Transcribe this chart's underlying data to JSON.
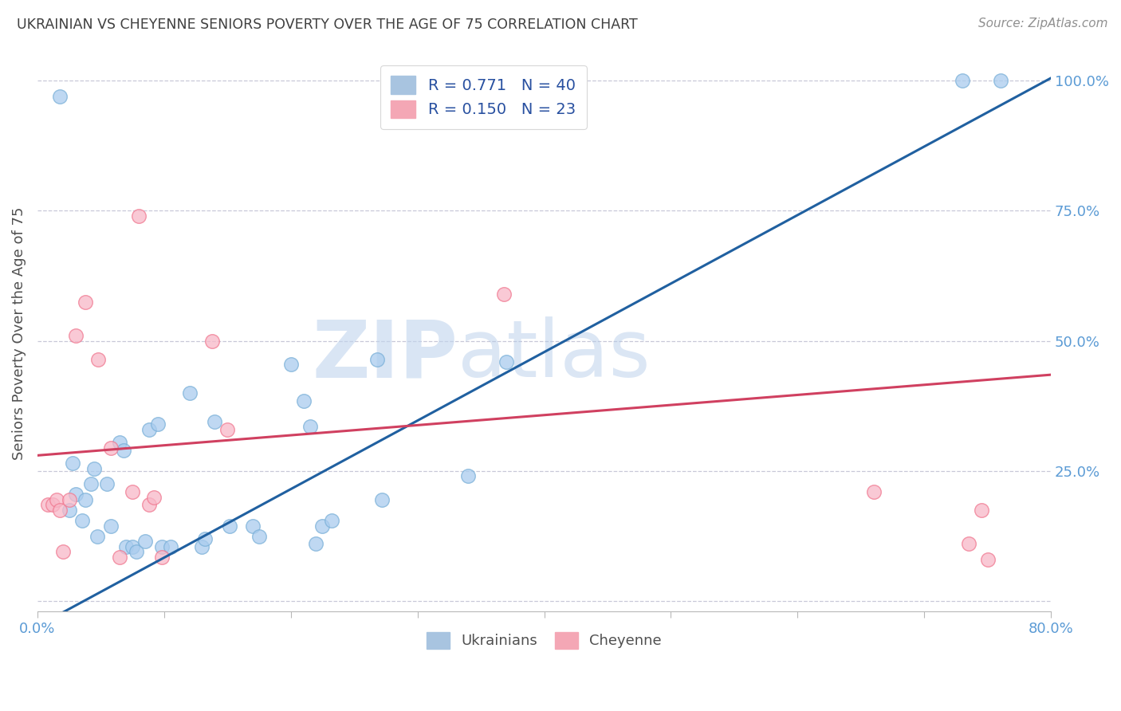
{
  "title": "UKRAINIAN VS CHEYENNE SENIORS POVERTY OVER THE AGE OF 75 CORRELATION CHART",
  "source": "Source: ZipAtlas.com",
  "ylabel": "Seniors Poverty Over the Age of 75",
  "xlim": [
    0.0,
    0.8
  ],
  "ylim": [
    -0.02,
    1.05
  ],
  "xticks": [
    0.0,
    0.1,
    0.2,
    0.3,
    0.4,
    0.5,
    0.6,
    0.7,
    0.8
  ],
  "xticklabels": [
    "0.0%",
    "",
    "",
    "",
    "",
    "",
    "",
    "",
    "80.0%"
  ],
  "yticks_right": [
    0.0,
    0.25,
    0.5,
    0.75,
    1.0
  ],
  "yticklabels_right": [
    "",
    "25.0%",
    "50.0%",
    "75.0%",
    "100.0%"
  ],
  "legend_entries": [
    {
      "label": "R = 0.771   N = 40",
      "color": "#a8c4e0"
    },
    {
      "label": "R = 0.150   N = 23",
      "color": "#f4a7b5"
    }
  ],
  "watermark_zip": "ZIP",
  "watermark_atlas": "atlas",
  "blue_scatter": [
    [
      0.018,
      0.97
    ],
    [
      0.025,
      0.175
    ],
    [
      0.028,
      0.265
    ],
    [
      0.03,
      0.205
    ],
    [
      0.035,
      0.155
    ],
    [
      0.038,
      0.195
    ],
    [
      0.042,
      0.225
    ],
    [
      0.045,
      0.255
    ],
    [
      0.047,
      0.125
    ],
    [
      0.055,
      0.225
    ],
    [
      0.058,
      0.145
    ],
    [
      0.065,
      0.305
    ],
    [
      0.068,
      0.29
    ],
    [
      0.07,
      0.105
    ],
    [
      0.075,
      0.105
    ],
    [
      0.078,
      0.095
    ],
    [
      0.085,
      0.115
    ],
    [
      0.088,
      0.33
    ],
    [
      0.095,
      0.34
    ],
    [
      0.098,
      0.105
    ],
    [
      0.105,
      0.105
    ],
    [
      0.12,
      0.4
    ],
    [
      0.13,
      0.105
    ],
    [
      0.132,
      0.12
    ],
    [
      0.14,
      0.345
    ],
    [
      0.152,
      0.145
    ],
    [
      0.17,
      0.145
    ],
    [
      0.175,
      0.125
    ],
    [
      0.2,
      0.455
    ],
    [
      0.21,
      0.385
    ],
    [
      0.215,
      0.335
    ],
    [
      0.22,
      0.11
    ],
    [
      0.225,
      0.145
    ],
    [
      0.232,
      0.155
    ],
    [
      0.268,
      0.465
    ],
    [
      0.272,
      0.195
    ],
    [
      0.34,
      0.24
    ],
    [
      0.37,
      0.46
    ],
    [
      0.73,
      1.0
    ],
    [
      0.76,
      1.0
    ]
  ],
  "pink_scatter": [
    [
      0.008,
      0.185
    ],
    [
      0.012,
      0.185
    ],
    [
      0.015,
      0.195
    ],
    [
      0.018,
      0.175
    ],
    [
      0.02,
      0.095
    ],
    [
      0.025,
      0.195
    ],
    [
      0.03,
      0.51
    ],
    [
      0.038,
      0.575
    ],
    [
      0.048,
      0.465
    ],
    [
      0.058,
      0.295
    ],
    [
      0.065,
      0.085
    ],
    [
      0.075,
      0.21
    ],
    [
      0.08,
      0.74
    ],
    [
      0.088,
      0.185
    ],
    [
      0.092,
      0.2
    ],
    [
      0.098,
      0.085
    ],
    [
      0.138,
      0.5
    ],
    [
      0.15,
      0.33
    ],
    [
      0.368,
      0.59
    ],
    [
      0.66,
      0.21
    ],
    [
      0.735,
      0.11
    ],
    [
      0.745,
      0.175
    ],
    [
      0.75,
      0.08
    ]
  ],
  "blue_line": [
    [
      0.0,
      -0.048
    ],
    [
      0.8,
      1.005
    ]
  ],
  "pink_line": [
    [
      0.0,
      0.28
    ],
    [
      0.8,
      0.435
    ]
  ],
  "blue_color": "#7ab0d8",
  "pink_color": "#f07890",
  "blue_fill_color": "#aaccee",
  "pink_fill_color": "#f8b8c8",
  "blue_line_color": "#2060a0",
  "pink_line_color": "#d04060",
  "bg_color": "#ffffff",
  "grid_color": "#c8c8d8",
  "title_color": "#404040",
  "axis_tick_color": "#5b9bd5",
  "source_color": "#909090"
}
